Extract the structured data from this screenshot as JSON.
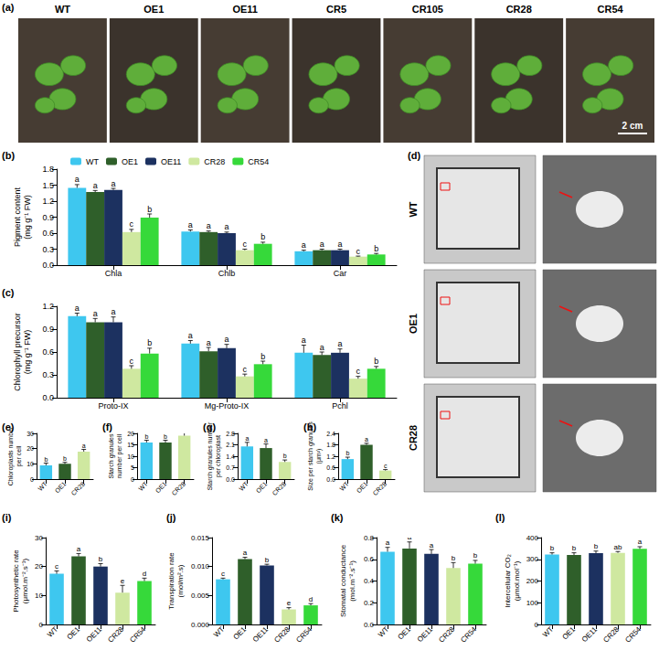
{
  "photo_panels": [
    {
      "panel": "(a)",
      "labels": [
        "WT",
        "OE1",
        "OE11",
        "CR5",
        "CR105",
        "CR28",
        "CR54"
      ],
      "scale_bar": "2 cm"
    },
    {
      "panel": "(d)",
      "rows": [
        "WT",
        "OE1",
        "CR28"
      ]
    }
  ],
  "chart_data": [
    {
      "type": "bar",
      "panel": "(b)",
      "ylabel": "Pigment content\n(mg g⁻¹ FW)",
      "legend": "top",
      "categories": [
        "Chla",
        "Chlb",
        "Car"
      ],
      "series": [
        {
          "name": "WT",
          "color": "#3ec7ef",
          "values": [
            1.45,
            0.63,
            0.26
          ],
          "errors": [
            0.06,
            0.03,
            0.02
          ],
          "letters": [
            "a",
            "a",
            "a"
          ]
        },
        {
          "name": "OE1",
          "color": "#2f5f2a",
          "values": [
            1.37,
            0.62,
            0.28
          ],
          "errors": [
            0.03,
            0.02,
            0.02
          ],
          "letters": [
            "a",
            "a",
            "a"
          ]
        },
        {
          "name": "OE11",
          "color": "#1c3160",
          "values": [
            1.41,
            0.6,
            0.28
          ],
          "errors": [
            0.03,
            0.02,
            0.02
          ],
          "letters": [
            "a",
            "a",
            "a"
          ]
        },
        {
          "name": "CR28",
          "color": "#cfe8a0",
          "values": [
            0.62,
            0.28,
            0.16
          ],
          "errors": [
            0.05,
            0.02,
            0.01
          ],
          "letters": [
            "c",
            "c",
            "c"
          ]
        },
        {
          "name": "CR54",
          "color": "#36d93a",
          "values": [
            0.89,
            0.4,
            0.2
          ],
          "errors": [
            0.07,
            0.03,
            0.02
          ],
          "letters": [
            "b",
            "b",
            "b"
          ]
        }
      ],
      "ylim": [
        0,
        1.8
      ],
      "yticks": [
        {
          "value": 0,
          "label": "0.0"
        },
        0.3,
        0.6,
        0.9,
        1.2,
        1.5,
        1.8
      ]
    },
    {
      "type": "bar",
      "panel": "(c)",
      "ylabel": "Chlorophyll precursor\n(mg g⁻¹ FW)",
      "categories": [
        "Proto-IX",
        "Mg-Proto-IX",
        "Pchl"
      ],
      "series": [
        {
          "name": "WT",
          "color": "#3ec7ef",
          "values": [
            1.07,
            0.71,
            0.59
          ],
          "errors": [
            0.04,
            0.04,
            0.1
          ],
          "letters": [
            "a",
            "a",
            "a"
          ]
        },
        {
          "name": "OE1",
          "color": "#2f5f2a",
          "values": [
            0.99,
            0.61,
            0.56
          ],
          "errors": [
            0.05,
            0.05,
            0.04
          ],
          "letters": [
            "a",
            "a",
            "a"
          ]
        },
        {
          "name": "OE11",
          "color": "#1c3160",
          "values": [
            0.99,
            0.65,
            0.59
          ],
          "errors": [
            0.07,
            0.05,
            0.05
          ],
          "letters": [
            "a",
            "a",
            "a"
          ]
        },
        {
          "name": "CR28",
          "color": "#cfe8a0",
          "values": [
            0.38,
            0.28,
            0.25
          ],
          "errors": [
            0.04,
            0.03,
            0.03
          ],
          "letters": [
            "c",
            "c",
            "c"
          ]
        },
        {
          "name": "CR54",
          "color": "#36d93a",
          "values": [
            0.58,
            0.44,
            0.38
          ],
          "errors": [
            0.07,
            0.04,
            0.03
          ],
          "letters": [
            "b",
            "b",
            "b"
          ]
        }
      ],
      "ylim": [
        0,
        1.2
      ],
      "yticks": [
        {
          "value": 0,
          "label": "0.0"
        },
        0.3,
        0.6,
        0.9,
        1.2
      ]
    },
    {
      "type": "bar",
      "panel": "(e)",
      "ylabel": "Chloroplasts number\nper cell",
      "categories": [
        "WT",
        "OE1",
        "CR28"
      ],
      "values": [
        9,
        10,
        18
      ],
      "errors": [
        1.5,
        1,
        1.5
      ],
      "letters": [
        "b",
        "b",
        "a"
      ],
      "colors": [
        "#3ec7ef",
        "#2f5f2a",
        "#cfe8a0"
      ],
      "ylim": [
        0,
        30
      ],
      "yticks": [
        0,
        10,
        20,
        30
      ]
    },
    {
      "type": "bar",
      "panel": "(f)",
      "ylabel": "Starch granules\nnumber per cell",
      "categories": [
        "WT",
        "OE1",
        "CR28"
      ],
      "values": [
        16,
        16,
        19
      ],
      "errors": [
        1,
        1,
        2.5
      ],
      "letters": [
        "b",
        "b",
        "a"
      ],
      "colors": [
        "#3ec7ef",
        "#2f5f2a",
        "#cfe8a0"
      ],
      "ylim": [
        0,
        20
      ],
      "yticks": [
        0,
        5,
        10,
        15,
        20
      ]
    },
    {
      "type": "bar",
      "panel": "(g)",
      "ylabel": "Starch granules number\nper chloroplast",
      "categories": [
        "WT",
        "OE1",
        "CR28"
      ],
      "values": [
        2.0,
        1.9,
        1.05
      ],
      "errors": [
        0.25,
        0.25,
        0.12
      ],
      "letters": [
        "a",
        "a",
        "b"
      ],
      "colors": [
        "#3ec7ef",
        "#2f5f2a",
        "#cfe8a0"
      ],
      "ylim": [
        0,
        2.8
      ],
      "yticks": [
        {
          "value": 0,
          "label": "0.0"
        },
        0.7,
        1.4,
        2.1,
        2.8
      ]
    },
    {
      "type": "bar",
      "panel": "(h)",
      "ylabel": "Size per starch granules\n(μm²)",
      "categories": [
        "WT",
        "OE1",
        "CR28"
      ],
      "values": [
        1.05,
        1.8,
        0.45
      ],
      "errors": [
        0.1,
        0.08,
        0.05
      ],
      "letters": [
        "b",
        "a",
        "c"
      ],
      "colors": [
        "#3ec7ef",
        "#2f5f2a",
        "#cfe8a0"
      ],
      "ylim": [
        0,
        2.4
      ],
      "yticks": [
        {
          "value": 0,
          "label": "0.0"
        },
        0.6,
        1.2,
        1.8,
        2.4
      ]
    },
    {
      "type": "bar",
      "panel": "(i)",
      "ylabel": "Photosynthetic rate\n(μmol.m⁻².s⁻¹)",
      "categories": [
        "WT",
        "OE1",
        "OE11",
        "CR28",
        "CR54"
      ],
      "values": [
        17.5,
        23.5,
        20,
        11,
        15
      ],
      "errors": [
        1,
        1,
        1,
        2.5,
        1
      ],
      "letters": [
        "c",
        "a",
        "b",
        "e",
        "d"
      ],
      "colors": [
        "#3ec7ef",
        "#2f5f2a",
        "#1c3160",
        "#cfe8a0",
        "#36d93a"
      ],
      "ylim": [
        0,
        30
      ],
      "yticks": [
        0,
        10,
        20,
        30
      ]
    },
    {
      "type": "bar",
      "panel": "(j)",
      "ylabel": "Transpiration rate\n(mol/m².s)",
      "categories": [
        "WT",
        "OE1",
        "OE11",
        "CR28",
        "CR54"
      ],
      "values": [
        0.0078,
        0.0113,
        0.0102,
        0.0026,
        0.0033
      ],
      "errors": [
        0.0002,
        0.0003,
        0.0002,
        0.0003,
        0.0003
      ],
      "letters": [
        "c",
        "a",
        "b",
        "e",
        "d"
      ],
      "colors": [
        "#3ec7ef",
        "#2f5f2a",
        "#1c3160",
        "#cfe8a0",
        "#36d93a"
      ],
      "ylim": [
        0,
        0.015
      ],
      "yticks": [
        {
          "value": 0,
          "label": "0.000"
        },
        0.005,
        {
          "value": 0.01,
          "label": "0.010"
        },
        0.015
      ]
    },
    {
      "type": "bar",
      "panel": "(k)",
      "ylabel": "Stomatal conductance\n(mol.m⁻².s⁻¹)",
      "categories": [
        "WT",
        "OE1",
        "OE11",
        "CR28",
        "CR54"
      ],
      "values": [
        0.67,
        0.7,
        0.65,
        0.52,
        0.56
      ],
      "errors": [
        0.04,
        0.06,
        0.04,
        0.05,
        0.03
      ],
      "letters": [
        "a",
        "a",
        "a",
        "b",
        "b"
      ],
      "colors": [
        "#3ec7ef",
        "#2f5f2a",
        "#1c3160",
        "#cfe8a0",
        "#36d93a"
      ],
      "ylim": [
        0,
        0.8
      ],
      "yticks": [
        {
          "value": 0,
          "label": "0.0"
        },
        0.2,
        0.4,
        0.6,
        0.8
      ]
    },
    {
      "type": "bar",
      "panel": "(l)",
      "ylabel": "Intercellular CO₂\n(μmol.mol⁻¹)",
      "categories": [
        "WT",
        "OE1",
        "OE11",
        "CR28",
        "CR54"
      ],
      "values": [
        322,
        320,
        328,
        330,
        348
      ],
      "errors": [
        8,
        10,
        10,
        6,
        10
      ],
      "letters": [
        "b",
        "b",
        "b",
        "ab",
        "a"
      ],
      "colors": [
        "#3ec7ef",
        "#2f5f2a",
        "#1c3160",
        "#cfe8a0",
        "#36d93a"
      ],
      "ylim": [
        0,
        400
      ],
      "yticks": [
        0,
        100,
        200,
        300,
        400
      ]
    }
  ]
}
